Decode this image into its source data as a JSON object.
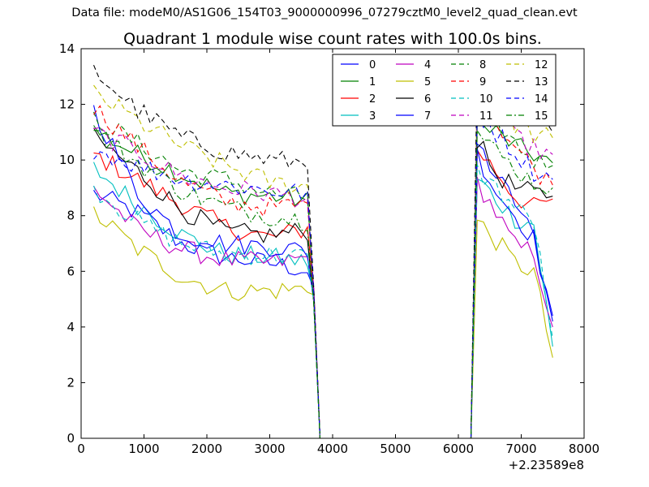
{
  "figure": {
    "suptitle": "Data file: modeM0/AS1G06_154T03_9000000996_07279cztM0_level2_quad_clean.evt"
  },
  "chart_data": {
    "type": "line",
    "title": "Quadrant 1 module wise count rates with 100.0s bins.",
    "xlabel": "",
    "ylabel": "",
    "xlim": [
      0,
      8000
    ],
    "ylim": [
      0,
      14
    ],
    "x_offset_label": "+2.23589e8",
    "x_ticks": [
      0,
      1000,
      2000,
      3000,
      4000,
      5000,
      6000,
      7000,
      8000
    ],
    "x_tick_labels": [
      "0",
      "1000",
      "2000",
      "3000",
      "4000",
      "5000",
      "6000",
      "7000",
      "8000"
    ],
    "y_ticks": [
      0,
      2,
      4,
      6,
      8,
      10,
      12,
      14
    ],
    "y_tick_labels": [
      "0",
      "2",
      "4",
      "6",
      "8",
      "10",
      "12",
      "14"
    ],
    "grid": false,
    "legend_position": "top-right",
    "legend_columns": 4,
    "segments": [
      {
        "x_start": 200,
        "x_step": 100,
        "n": 36
      },
      {
        "x_start": 6300,
        "x_step": 100,
        "n": 13
      }
    ],
    "gap": {
      "x": [
        3800,
        3900,
        4000,
        5000,
        6000,
        6100,
        6200
      ],
      "value": 0
    },
    "series": [
      {
        "name": "0",
        "color": "#0000ff",
        "dash": "solid",
        "seg1_level": [
          8.8,
          8.1,
          7.0,
          6.5,
          6.3,
          6.0
        ],
        "seg2_level": [
          10.6,
          9.4,
          8.5,
          7.2,
          4.2
        ]
      },
      {
        "name": "1",
        "color": "#008000",
        "dash": "solid",
        "seg1_level": [
          11.1,
          10.2,
          9.5,
          8.8,
          8.7,
          8.5
        ],
        "seg2_level": [
          11.2,
          11.0,
          10.5,
          10.2,
          9.9
        ]
      },
      {
        "name": "2",
        "color": "#ff0000",
        "dash": "solid",
        "seg1_level": [
          10.2,
          9.3,
          8.4,
          7.6,
          7.2,
          7.6
        ],
        "seg2_level": [
          10.4,
          9.6,
          8.7,
          8.3,
          8.6
        ]
      },
      {
        "name": "3",
        "color": "#00bfbf",
        "dash": "solid",
        "seg1_level": [
          9.7,
          8.4,
          7.3,
          6.6,
          6.5,
          6.3
        ],
        "seg2_level": [
          9.3,
          8.6,
          7.9,
          7.7,
          3.3
        ]
      },
      {
        "name": "4",
        "color": "#bf00bf",
        "dash": "solid",
        "seg1_level": [
          9.0,
          7.5,
          6.8,
          6.4,
          6.3,
          6.5
        ],
        "seg2_level": [
          9.2,
          8.1,
          6.9,
          6.7,
          4.0
        ]
      },
      {
        "name": "5",
        "color": "#bfbf00",
        "dash": "solid",
        "seg1_level": [
          8.1,
          6.8,
          5.8,
          5.3,
          5.3,
          5.4
        ],
        "seg2_level": [
          7.8,
          7.1,
          6.3,
          6.0,
          2.9
        ]
      },
      {
        "name": "6",
        "color": "#000000",
        "dash": "solid",
        "seg1_level": [
          10.8,
          9.6,
          8.2,
          7.4,
          7.3,
          7.5
        ],
        "seg2_level": [
          10.7,
          9.5,
          9.0,
          8.8,
          8.7
        ]
      },
      {
        "name": "7",
        "color": "#0000ff",
        "dash": "solid",
        "seg1_level": [
          11.8,
          8.8,
          7.3,
          7.0,
          6.9,
          6.7
        ],
        "seg2_level": [
          10.2,
          8.9,
          8.0,
          7.2,
          4.4
        ]
      },
      {
        "name": "8",
        "color": "#008000",
        "dash": "dashed",
        "seg1_level": [
          11.5,
          10.6,
          9.6,
          9.3,
          8.8,
          8.6
        ],
        "seg2_level": [
          11.7,
          11.3,
          10.6,
          10.0,
          9.8
        ]
      },
      {
        "name": "9",
        "color": "#ff0000",
        "dash": "dashed",
        "seg1_level": [
          11.9,
          10.5,
          9.2,
          8.5,
          8.3,
          8.4
        ],
        "seg2_level": [
          12.2,
          11.4,
          10.5,
          9.7,
          9.1
        ]
      },
      {
        "name": "10",
        "color": "#00bfbf",
        "dash": "dashed",
        "seg1_level": [
          9.0,
          7.8,
          7.0,
          6.6,
          6.6,
          6.5
        ],
        "seg2_level": [
          9.6,
          9.0,
          8.3,
          7.8,
          3.6
        ]
      },
      {
        "name": "11",
        "color": "#bf00bf",
        "dash": "dashed",
        "seg1_level": [
          11.0,
          10.3,
          9.4,
          9.0,
          8.8,
          8.6
        ],
        "seg2_level": [
          12.5,
          11.5,
          10.8,
          10.4,
          10.2
        ]
      },
      {
        "name": "12",
        "color": "#bfbf00",
        "dash": "dashed",
        "seg1_level": [
          12.4,
          11.4,
          10.5,
          9.8,
          9.2,
          9.0
        ],
        "seg2_level": [
          12.8,
          12.0,
          11.3,
          10.9,
          10.8
        ]
      },
      {
        "name": "13",
        "color": "#000000",
        "dash": "dashed",
        "seg1_level": [
          13.2,
          11.8,
          10.8,
          10.3,
          10.0,
          9.9
        ],
        "seg2_level": [
          13.2,
          12.3,
          11.6,
          11.2,
          11.0
        ]
      },
      {
        "name": "14",
        "color": "#0000ff",
        "dash": "dashed",
        "seg1_level": [
          10.4,
          9.8,
          9.3,
          9.1,
          8.9,
          8.8
        ],
        "seg2_level": [
          11.7,
          11.0,
          10.3,
          9.6,
          9.3
        ]
      },
      {
        "name": "15",
        "color": "#008000",
        "dash": "dashdot",
        "seg1_level": [
          11.0,
          9.9,
          8.9,
          8.3,
          8.0,
          7.8
        ],
        "seg2_level": [
          11.0,
          10.3,
          9.7,
          9.2,
          9.0
        ]
      }
    ]
  }
}
